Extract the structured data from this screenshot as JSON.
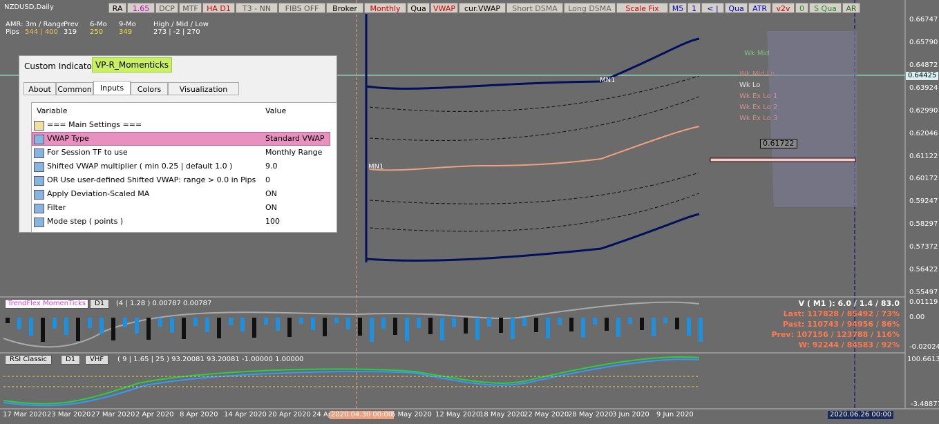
{
  "symbol": "NZDUSD,Daily",
  "toolbar": [
    {
      "label": "RA",
      "color": "#000"
    },
    {
      "label": "1.65",
      "color": "#c000c0"
    },
    {
      "label": "DCP",
      "color": "#555"
    },
    {
      "label": "MTF",
      "color": "#555"
    },
    {
      "label": "HA D1",
      "color": "#d00000"
    },
    {
      "label": "T3 - NN",
      "color": "#555"
    },
    {
      "label": "FIBS OFF",
      "color": "#555"
    },
    {
      "label": "Broker",
      "color": "#000"
    },
    {
      "label": "Monthly",
      "color": "#d00000"
    },
    {
      "label": "Qua",
      "color": "#000"
    },
    {
      "label": "VWAP",
      "color": "#d00000"
    },
    {
      "label": "cur.VWAP",
      "color": "#000"
    },
    {
      "label": "Short DSMA",
      "color": "#666"
    },
    {
      "label": "Long DSMA",
      "color": "#666"
    },
    {
      "label": "Scale Fix",
      "color": "#d00000"
    },
    {
      "label": "M5",
      "color": "#0000c0"
    },
    {
      "label": "1",
      "color": "#0000c0"
    },
    {
      "label": "< |",
      "color": "#0000c0"
    },
    {
      "label": "Qua",
      "color": "#0000c0"
    },
    {
      "label": "ATR",
      "color": "#0000c0"
    },
    {
      "label": "v2v",
      "color": "#d00000"
    },
    {
      "label": "0",
      "color": "#2a8a2a"
    },
    {
      "label": "S Qua",
      "color": "#2a8a2a"
    },
    {
      "label": "AR",
      "color": "#2a6a2a"
    }
  ],
  "amr": {
    "label1": "AMR: 3m / Range",
    "label2": "Pips",
    "range": "544 | 400",
    "prev_label": "Prev",
    "prev": "319",
    "m6_label": "6-Mo",
    "m6": "250",
    "m9_label": "9-Mo",
    "m9": "349",
    "hml_label": "High / Mid / Low",
    "hml": "273 | -2 | 270"
  },
  "price_axis": [
    "0.66747",
    "0.65790",
    "0.64872",
    "0.63924",
    "0.62990",
    "0.62046",
    "0.61122",
    "0.60172",
    "0.59247",
    "0.58297",
    "0.57372",
    "0.56422",
    "0.55497"
  ],
  "current_price": "0.64425",
  "levels": [
    {
      "label": "Wk Mid",
      "color": "#7cc47c"
    },
    {
      "label": "Wk Mid Lo",
      "color": "#d08080"
    },
    {
      "label": "Wk Lo",
      "color": "#e0e0e0"
    },
    {
      "label": "Wk Ex Lo 1",
      "color": "#d09090"
    },
    {
      "label": "Wk Ex Lo 2",
      "color": "#d09090"
    },
    {
      "label": "Wk Ex Lo 3",
      "color": "#d09090"
    }
  ],
  "poc_label": "0.61722",
  "mn1_labels": [
    "MN1",
    "MN1"
  ],
  "dialog": {
    "title": "Custom Indicator - ",
    "name": "VP-R_Momenticks",
    "tabs": [
      "About",
      "Common",
      "Inputs",
      "Colors",
      "Visualization"
    ],
    "columns": [
      "Variable",
      "Value"
    ],
    "rows": [
      [
        "=== Main Settings ===",
        ""
      ],
      [
        "VWAP Type",
        "Standard VWAP"
      ],
      [
        "For Session TF to use",
        "Monthly Range"
      ],
      [
        "Shifted VWAP multiplier  ( min 0.25 | default 1.0 )",
        "9.0"
      ],
      [
        "OR Use user-defined Shifted VWAP: range > 0.0 in Pips",
        "0"
      ],
      [
        "Apply Deviation-Scaled MA",
        "ON"
      ],
      [
        "Filter",
        "ON"
      ],
      [
        "Mode step ( points )",
        "100"
      ]
    ]
  },
  "sub1": {
    "name": "TrendFlex MomenTicks",
    "tf": "D1",
    "params": "(4 | 1.28 ) 0.00787 0.00787",
    "axis": [
      "0.01119",
      "0.00",
      "-0.02024"
    ],
    "stats": [
      "V ( M1 ): 6.0 / 1.4 / 83.0",
      "Last: 117828 / 85492 / 73%",
      "Past: 110743 / 94956 / 86%",
      "Prev: 107156 / 123788 / 116%",
      "W: 92244 / 84583 / 92%"
    ]
  },
  "sub2": {
    "name": "RSI Classic",
    "tf": "D1",
    "extra": "VHF",
    "params": "( 9 | 1.65 | 25 ) 93.20081 93.20081 -1.00000 1.00000",
    "axis": [
      "100.66131",
      "-3.48877"
    ]
  },
  "dates": [
    "17 Mar 2020",
    "23 Mar 2020",
    "27 Mar 2020",
    "2 Apr 2020",
    "8 Apr 2020",
    "14 Apr 2020",
    "20 Apr 2020",
    "24 Ap",
    "2020.04.30 00:00",
    "6 May 2020",
    "12 May 2020",
    "18 May 2020",
    "22 May 2020",
    "28 May 2020",
    "3 Jun 2020",
    "9 Jun 2020"
  ],
  "end_date": "2020.06.26 00:00"
}
